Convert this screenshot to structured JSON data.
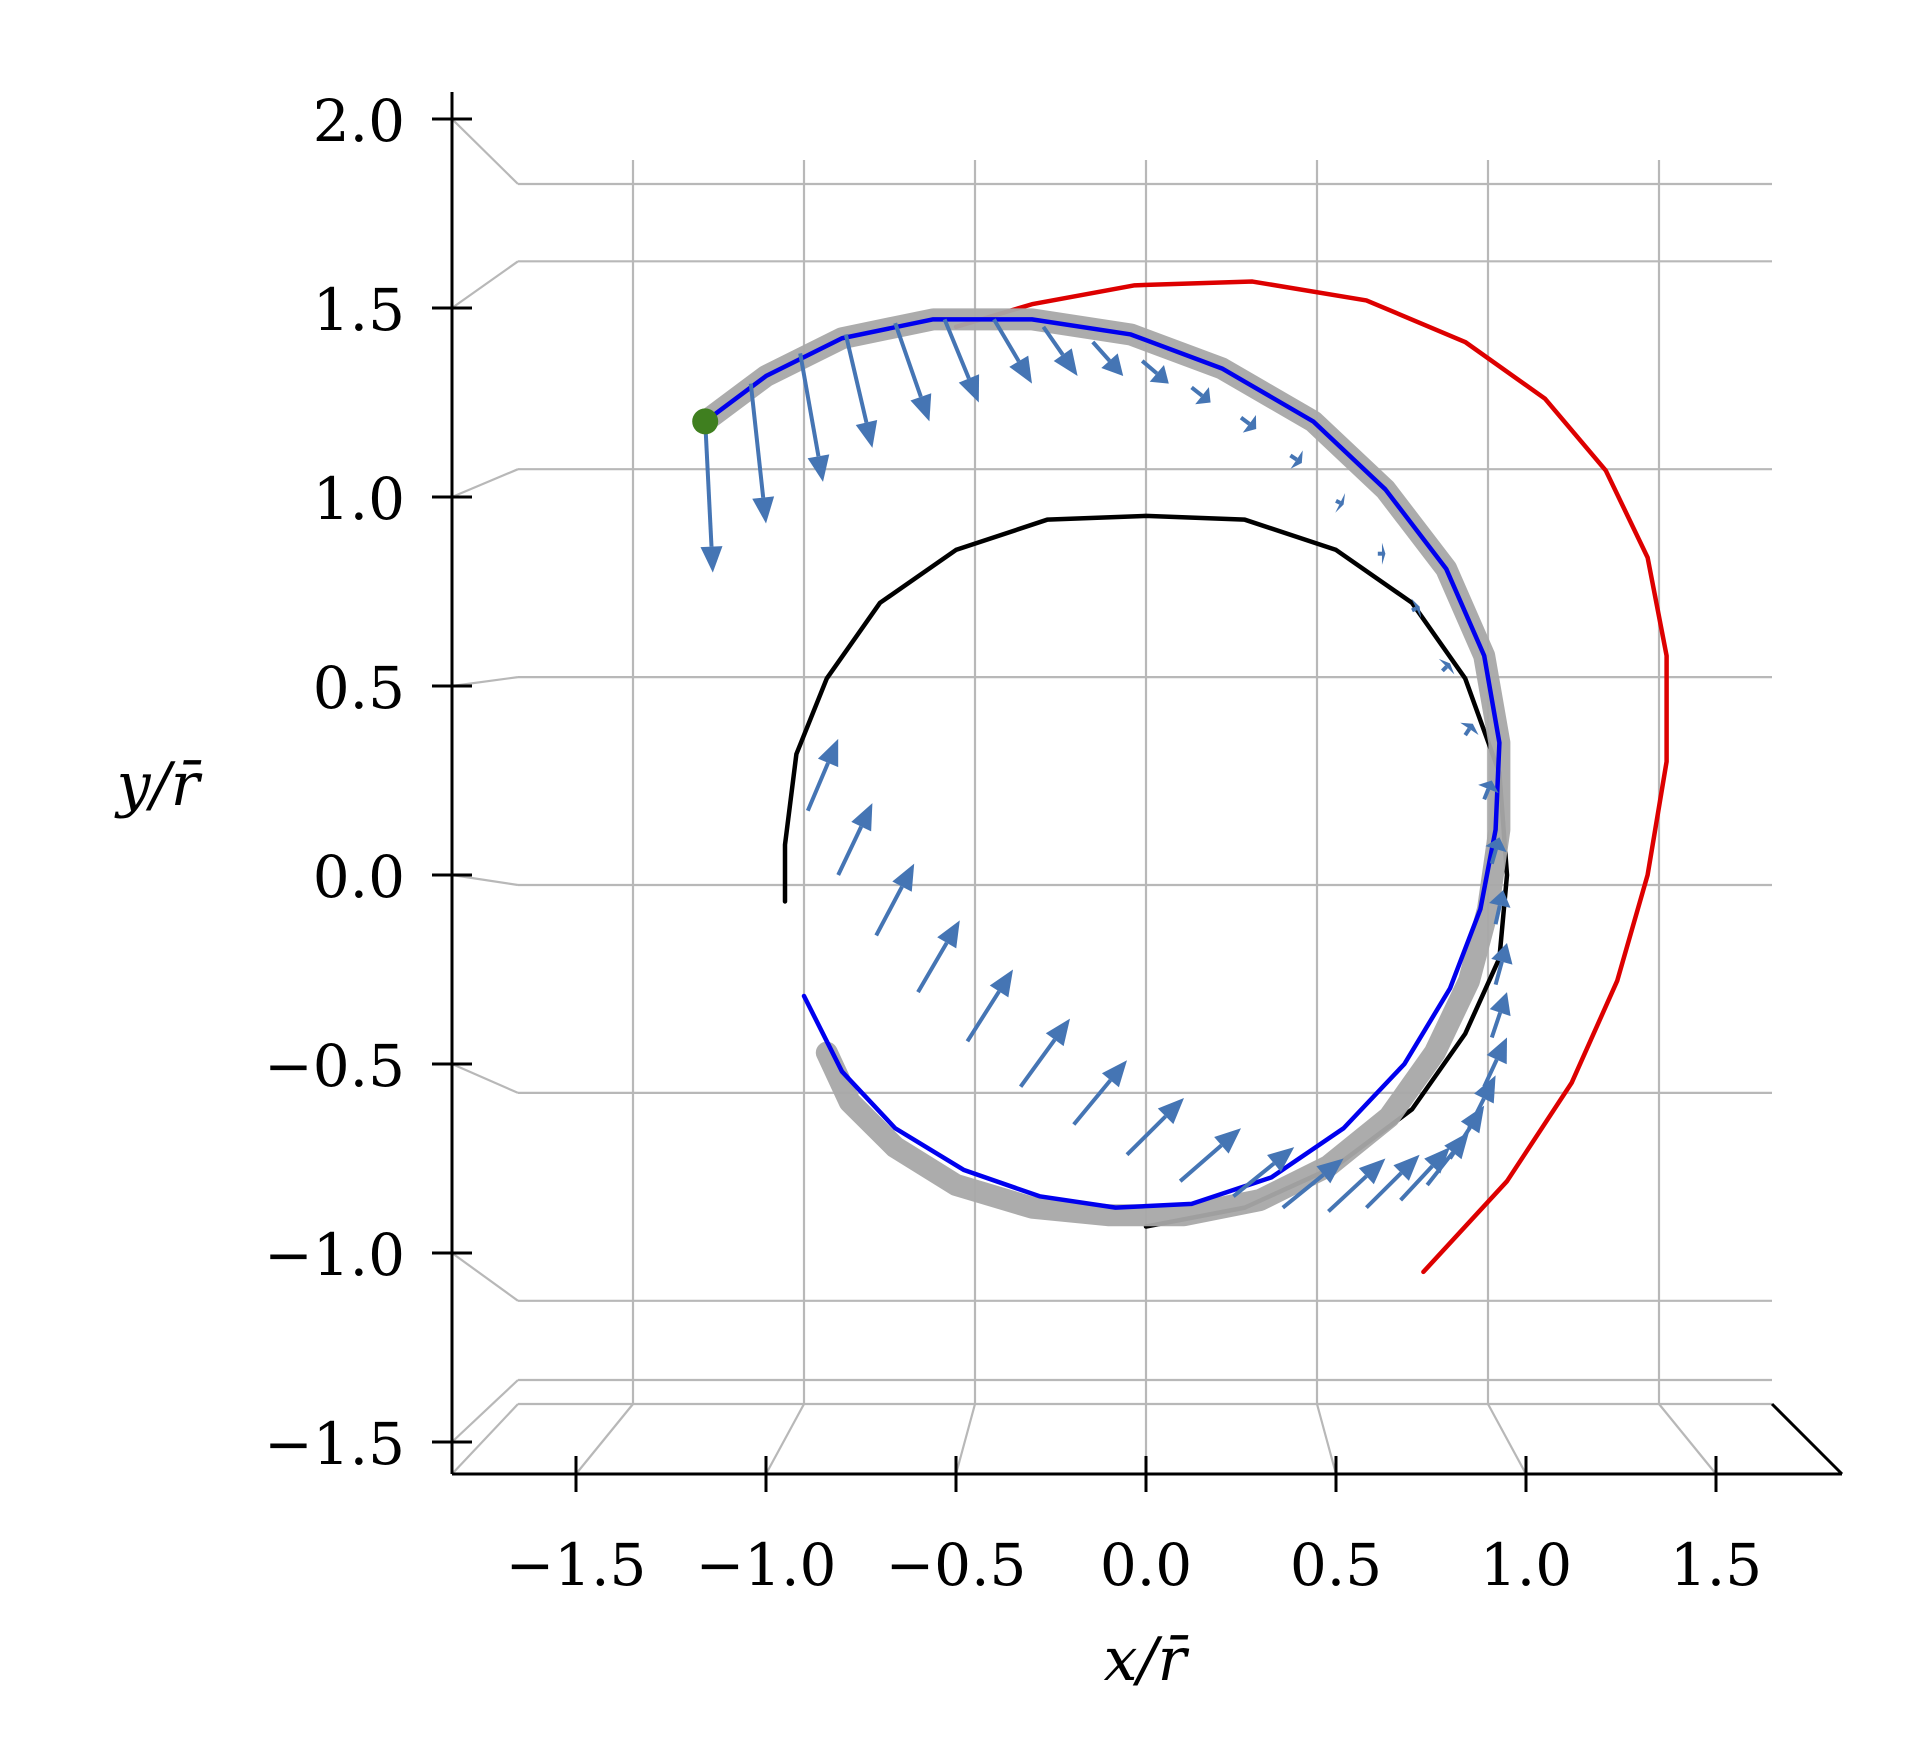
{
  "chart_data": {
    "type": "line",
    "title": "",
    "xlabel": "x/r̄",
    "ylabel": "y/r̄",
    "xlim": [
      -1.8,
      1.8
    ],
    "ylim": [
      -1.58,
      2.0
    ],
    "xticks": [
      "−1.5",
      "−1.0",
      "−0.5",
      "0.0",
      "0.5",
      "1.0",
      "1.5"
    ],
    "xtick_values": [
      -1.5,
      -1.0,
      -0.5,
      0.0,
      0.5,
      1.0,
      1.5
    ],
    "yticks": [
      "−1.5",
      "−1.0",
      "−0.5",
      "0.0",
      "0.5",
      "1.0",
      "1.5",
      "2.0"
    ],
    "ytick_values": [
      -1.5,
      -1.0,
      -0.5,
      0.0,
      0.5,
      1.0,
      1.5,
      2.0
    ],
    "grid": true,
    "colors": {
      "red_curve": "#dd0000",
      "black_curve": "#000000",
      "blue_curve": "#0000ee",
      "gray_band": "#a8a8a8",
      "arrows": "#4575b4",
      "start_marker": "#3f7f1f",
      "grid": "#b8b8b8"
    },
    "series": [
      {
        "style": "red",
        "x": [
          0.73,
          0.95,
          1.12,
          1.24,
          1.32,
          1.37,
          1.37,
          1.32,
          1.21,
          1.05,
          0.84,
          0.58,
          0.28,
          -0.03,
          -0.3,
          -0.5
        ],
        "y": [
          -1.05,
          -0.81,
          -0.55,
          -0.28,
          0.0,
          0.3,
          0.58,
          0.84,
          1.07,
          1.26,
          1.41,
          1.52,
          1.57,
          1.56,
          1.51,
          1.45
        ]
      },
      {
        "style": "black",
        "x": [
          -0.95,
          -0.95,
          -0.92,
          -0.84,
          -0.7,
          -0.5,
          -0.26,
          0.0,
          0.26,
          0.5,
          0.7,
          0.84,
          0.93,
          0.95,
          0.93,
          0.84,
          0.7,
          0.5,
          0.26,
          0.0
        ],
        "y": [
          -0.07,
          0.08,
          0.32,
          0.52,
          0.72,
          0.86,
          0.94,
          0.95,
          0.94,
          0.86,
          0.72,
          0.52,
          0.27,
          0.0,
          -0.22,
          -0.42,
          -0.62,
          -0.77,
          -0.88,
          -0.93
        ]
      },
      {
        "style": "gray-band",
        "x": [
          -1.16,
          -1.0,
          -0.8,
          -0.56,
          -0.3,
          -0.04,
          0.2,
          0.44,
          0.63,
          0.79,
          0.89,
          0.93,
          0.93,
          0.9,
          0.85,
          0.76,
          0.64,
          0.48,
          0.3,
          0.1,
          -0.1,
          -0.3,
          -0.5,
          -0.66,
          -0.78,
          -0.84
        ],
        "y": [
          1.2,
          1.32,
          1.42,
          1.47,
          1.47,
          1.43,
          1.34,
          1.2,
          1.02,
          0.81,
          0.58,
          0.35,
          0.12,
          -0.09,
          -0.28,
          -0.47,
          -0.64,
          -0.77,
          -0.86,
          -0.9,
          -0.9,
          -0.88,
          -0.82,
          -0.72,
          -0.6,
          -0.47
        ]
      },
      {
        "style": "blue",
        "x": [
          -1.16,
          -1.0,
          -0.8,
          -0.56,
          -0.3,
          -0.04,
          0.2,
          0.44,
          0.63,
          0.79,
          0.89,
          0.93,
          0.92,
          0.88,
          0.8,
          0.68,
          0.52,
          0.33,
          0.12,
          -0.08,
          -0.28,
          -0.48,
          -0.66,
          -0.8,
          -0.9
        ],
        "y": [
          1.2,
          1.32,
          1.42,
          1.47,
          1.47,
          1.43,
          1.34,
          1.2,
          1.02,
          0.81,
          0.58,
          0.35,
          0.12,
          -0.09,
          -0.3,
          -0.5,
          -0.67,
          -0.8,
          -0.87,
          -0.88,
          -0.85,
          -0.78,
          -0.67,
          -0.52,
          -0.32
        ]
      }
    ],
    "arrows": {
      "x": [
        -1.16,
        -1.04,
        -0.91,
        -0.79,
        -0.66,
        -0.53,
        -0.4,
        -0.27,
        -0.14,
        -0.01,
        0.12,
        0.25,
        0.38,
        0.5,
        0.61,
        0.7,
        0.78,
        0.84,
        0.89,
        0.91,
        0.92,
        0.92,
        0.91,
        0.89,
        0.85,
        0.8,
        0.74,
        0.67,
        0.58,
        0.48,
        0.36,
        0.23,
        0.09,
        -0.05,
        -0.19,
        -0.33,
        -0.47,
        -0.6,
        -0.71,
        -0.81,
        -0.89
      ],
      "y": [
        1.2,
        1.3,
        1.38,
        1.43,
        1.46,
        1.47,
        1.47,
        1.45,
        1.41,
        1.36,
        1.29,
        1.21,
        1.11,
        0.99,
        0.85,
        0.7,
        0.54,
        0.37,
        0.2,
        0.03,
        -0.13,
        -0.29,
        -0.43,
        -0.56,
        -0.67,
        -0.75,
        -0.82,
        -0.86,
        -0.88,
        -0.89,
        -0.88,
        -0.85,
        -0.81,
        -0.74,
        -0.66,
        -0.56,
        -0.44,
        -0.31,
        -0.16,
        0.0,
        0.17
      ],
      "u": [
        0.02,
        0.04,
        0.06,
        0.07,
        0.09,
        0.09,
        0.1,
        0.09,
        0.08,
        0.07,
        0.05,
        0.04,
        0.03,
        0.02,
        0.02,
        0.02,
        0.02,
        0.02,
        0.02,
        0.02,
        0.02,
        0.03,
        0.04,
        0.06,
        0.07,
        0.09,
        0.11,
        0.13,
        0.14,
        0.15,
        0.16,
        0.16,
        0.16,
        0.15,
        0.14,
        0.13,
        0.12,
        0.11,
        0.1,
        0.09,
        0.08
      ],
      "v": [
        -0.4,
        -0.37,
        -0.34,
        -0.3,
        -0.26,
        -0.22,
        -0.17,
        -0.13,
        -0.09,
        -0.06,
        -0.04,
        -0.03,
        -0.02,
        -0.01,
        0.0,
        0.01,
        0.02,
        0.03,
        0.05,
        0.07,
        0.09,
        0.11,
        0.12,
        0.13,
        0.14,
        0.14,
        0.14,
        0.14,
        0.14,
        0.14,
        0.13,
        0.13,
        0.14,
        0.15,
        0.17,
        0.18,
        0.19,
        0.19,
        0.19,
        0.19,
        0.19
      ]
    },
    "start_point": {
      "x": -1.16,
      "y": 1.2
    }
  }
}
